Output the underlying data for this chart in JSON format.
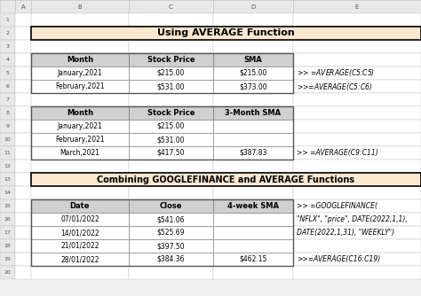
{
  "title1": "Using AVERAGE Function",
  "title2": "Combining GOOGLEFINANCE and AVERAGE Functions",
  "table1_headers": [
    "Month",
    "Stock Price",
    "SMA"
  ],
  "table1_rows": [
    [
      "January,2021",
      "$215.00",
      "$215.00"
    ],
    [
      "February,2021",
      "$531.00",
      "$373.00"
    ]
  ],
  "table1_formulas": [
    ">> =AVERAGE($C$5:C5)",
    ">>=AVERAGE($C$5:C6)"
  ],
  "table2_headers": [
    "Month",
    "Stock Price",
    "3-Month SMA"
  ],
  "table2_rows": [
    [
      "January,2021",
      "$215.00",
      ""
    ],
    [
      "February,2021",
      "$531.00",
      ""
    ],
    [
      "March,2021",
      "$417.50",
      "$387.83"
    ]
  ],
  "table2_formula": ">> =AVERAGE(C9:C11)",
  "table3_headers": [
    "Date",
    "Close",
    "4-week SMA"
  ],
  "table3_rows": [
    [
      "07/01/2022",
      "$541.06",
      ""
    ],
    [
      "14/01/2022",
      "$525.69",
      ""
    ],
    [
      "21/01/2022",
      "$397.50",
      ""
    ],
    [
      "28/01/2022",
      "$384.36",
      "$462.15"
    ]
  ],
  "table3_formula_line1": ">> =GOOGLEFINANCE(",
  "table3_formula_line2": "\"NFLX\", \"price\", DATE(2022,1,1),",
  "table3_formula_line3": "DATE(2022,1,31), \"WEEKLY\")",
  "table3_formula2": ">>=AVERAGE(C16:C19)",
  "bg_color": "#f0f0f0",
  "col_header_bg": "#e8e8e8",
  "row_header_bg": "#e8e8e8",
  "title_bg": "#fce8d0",
  "table_header_bg": "#d0d0d0",
  "cell_bg": "#ffffff",
  "grid_color": "#c0c0c0",
  "header_border": "#888888",
  "title_border": "#000000"
}
